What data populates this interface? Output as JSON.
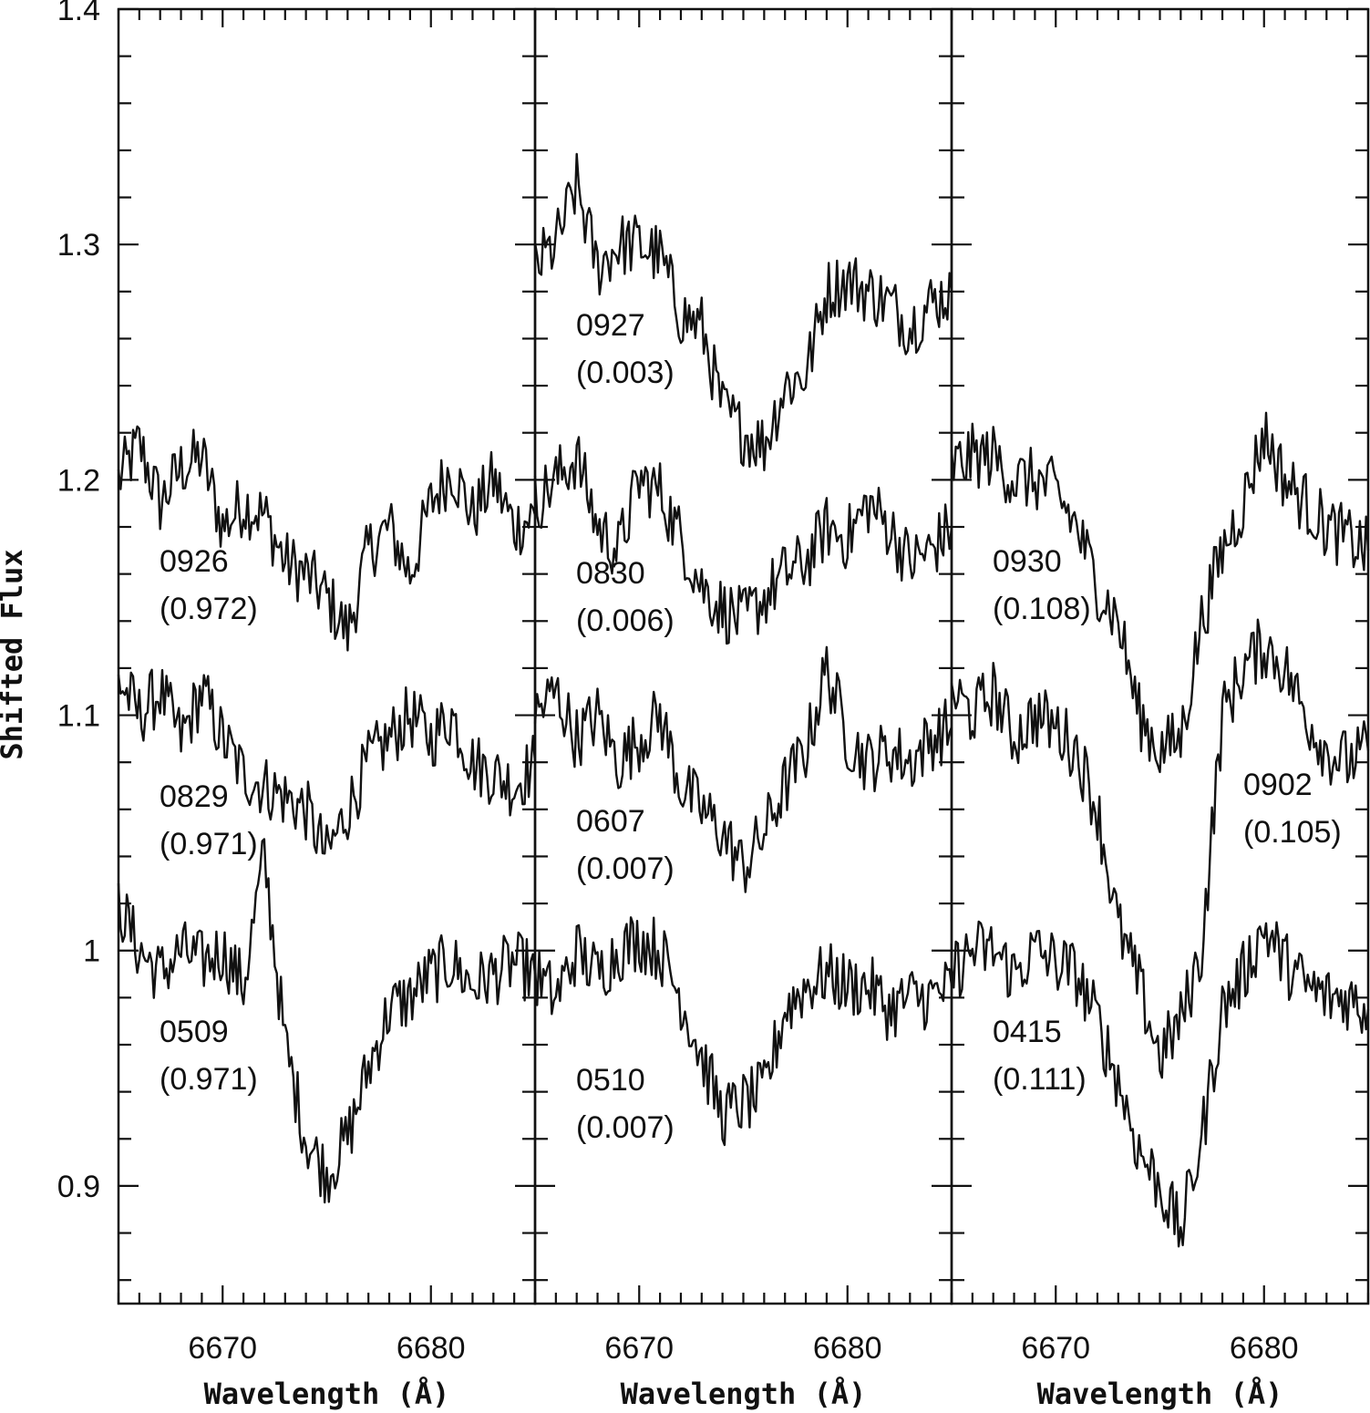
{
  "chart_data": {
    "type": "line",
    "ylabel": "Shifted Flux",
    "xlabel": "Wavelength (Å)",
    "xlim": [
      6665,
      6685
    ],
    "ylim": [
      0.85,
      1.4
    ],
    "x_ticks": [
      "6670",
      "6680"
    ],
    "y_ticks": [
      "0.9",
      "1",
      "1.1",
      "1.2",
      "1.3",
      "1.4"
    ],
    "panels": [
      {
        "panel": "left",
        "series": [
          {
            "id": "0926",
            "phase": "(0.972)",
            "level": 1.2,
            "points": [
              [
                6665,
                1.2
              ],
              [
                6666,
                1.215
              ],
              [
                6667,
                1.19
              ],
              [
                6668,
                1.205
              ],
              [
                6669,
                1.21
              ],
              [
                6670,
                1.18
              ],
              [
                6671,
                1.19
              ],
              [
                6672,
                1.185
              ],
              [
                6673,
                1.165
              ],
              [
                6674,
                1.16
              ],
              [
                6675,
                1.15
              ],
              [
                6676,
                1.135
              ],
              [
                6677,
                1.17
              ],
              [
                6678,
                1.18
              ],
              [
                6679,
                1.16
              ],
              [
                6680,
                1.19
              ],
              [
                6681,
                1.205
              ],
              [
                6682,
                1.185
              ],
              [
                6683,
                1.2
              ],
              [
                6684,
                1.18
              ],
              [
                6685,
                1.185
              ]
            ]
          },
          {
            "id": "0829",
            "phase": "(0.971)",
            "level": 1.1,
            "points": [
              [
                6665,
                1.115
              ],
              [
                6666,
                1.1
              ],
              [
                6667,
                1.11
              ],
              [
                6668,
                1.09
              ],
              [
                6669,
                1.11
              ],
              [
                6670,
                1.09
              ],
              [
                6671,
                1.075
              ],
              [
                6672,
                1.07
              ],
              [
                6673,
                1.065
              ],
              [
                6674,
                1.06
              ],
              [
                6675,
                1.04
              ],
              [
                6676,
                1.06
              ],
              [
                6677,
                1.08
              ],
              [
                6678,
                1.09
              ],
              [
                6679,
                1.1
              ],
              [
                6680,
                1.09
              ],
              [
                6681,
                1.1
              ],
              [
                6682,
                1.08
              ],
              [
                6683,
                1.075
              ],
              [
                6684,
                1.07
              ],
              [
                6685,
                1.08
              ]
            ]
          },
          {
            "id": "0509",
            "phase": "(0.971)",
            "level": 1.0,
            "points": [
              [
                6665,
                1.02
              ],
              [
                6666,
                1.0
              ],
              [
                6667,
                0.99
              ],
              [
                6668,
                1.0
              ],
              [
                6669,
                0.995
              ],
              [
                6670,
                1.0
              ],
              [
                6671,
                0.985
              ],
              [
                6672,
                1.04
              ],
              [
                6673,
                0.96
              ],
              [
                6674,
                0.92
              ],
              [
                6675,
                0.905
              ],
              [
                6676,
                0.92
              ],
              [
                6677,
                0.95
              ],
              [
                6678,
                0.975
              ],
              [
                6679,
                0.98
              ],
              [
                6680,
                0.99
              ],
              [
                6681,
                0.995
              ],
              [
                6682,
                0.985
              ],
              [
                6683,
                0.99
              ],
              [
                6684,
                0.995
              ],
              [
                6685,
                0.99
              ]
            ]
          }
        ]
      },
      {
        "panel": "middle",
        "series": [
          {
            "id": "0927",
            "phase": "(0.003)",
            "level": 1.3,
            "points": [
              [
                6665,
                1.29
              ],
              [
                6666,
                1.3
              ],
              [
                6667,
                1.325
              ],
              [
                6668,
                1.29
              ],
              [
                6669,
                1.3
              ],
              [
                6670,
                1.3
              ],
              [
                6671,
                1.295
              ],
              [
                6672,
                1.27
              ],
              [
                6673,
                1.265
              ],
              [
                6674,
                1.23
              ],
              [
                6675,
                1.22
              ],
              [
                6676,
                1.215
              ],
              [
                6677,
                1.24
              ],
              [
                6678,
                1.245
              ],
              [
                6679,
                1.28
              ],
              [
                6680,
                1.285
              ],
              [
                6681,
                1.28
              ],
              [
                6682,
                1.275
              ],
              [
                6683,
                1.265
              ],
              [
                6684,
                1.275
              ],
              [
                6685,
                1.28
              ]
            ]
          },
          {
            "id": "0830",
            "phase": "(0.006)",
            "level": 1.2,
            "points": [
              [
                6665,
                1.19
              ],
              [
                6666,
                1.2
              ],
              [
                6667,
                1.21
              ],
              [
                6668,
                1.18
              ],
              [
                6669,
                1.17
              ],
              [
                6670,
                1.2
              ],
              [
                6671,
                1.195
              ],
              [
                6672,
                1.175
              ],
              [
                6673,
                1.155
              ],
              [
                6674,
                1.145
              ],
              [
                6675,
                1.14
              ],
              [
                6676,
                1.15
              ],
              [
                6677,
                1.16
              ],
              [
                6678,
                1.165
              ],
              [
                6679,
                1.18
              ],
              [
                6680,
                1.175
              ],
              [
                6681,
                1.19
              ],
              [
                6682,
                1.18
              ],
              [
                6683,
                1.165
              ],
              [
                6684,
                1.17
              ],
              [
                6685,
                1.18
              ]
            ]
          },
          {
            "id": "0607",
            "phase": "(0.007)",
            "level": 1.1,
            "points": [
              [
                6665,
                1.1
              ],
              [
                6666,
                1.11
              ],
              [
                6667,
                1.09
              ],
              [
                6668,
                1.1
              ],
              [
                6669,
                1.08
              ],
              [
                6670,
                1.09
              ],
              [
                6671,
                1.1
              ],
              [
                6672,
                1.07
              ],
              [
                6673,
                1.06
              ],
              [
                6674,
                1.05
              ],
              [
                6675,
                1.035
              ],
              [
                6676,
                1.05
              ],
              [
                6677,
                1.07
              ],
              [
                6678,
                1.085
              ],
              [
                6679,
                1.12
              ],
              [
                6680,
                1.09
              ],
              [
                6681,
                1.08
              ],
              [
                6682,
                1.085
              ],
              [
                6683,
                1.08
              ],
              [
                6684,
                1.09
              ],
              [
                6685,
                1.095
              ]
            ]
          },
          {
            "id": "0510",
            "phase": "(0.007)",
            "level": 1.0,
            "points": [
              [
                6665,
                0.99
              ],
              [
                6666,
                0.98
              ],
              [
                6667,
                1.0
              ],
              [
                6668,
                0.99
              ],
              [
                6669,
                1.0
              ],
              [
                6670,
                1.005
              ],
              [
                6671,
                1.0
              ],
              [
                6672,
                0.98
              ],
              [
                6673,
                0.955
              ],
              [
                6674,
                0.93
              ],
              [
                6675,
                0.935
              ],
              [
                6676,
                0.94
              ],
              [
                6677,
                0.975
              ],
              [
                6678,
                0.985
              ],
              [
                6679,
                0.99
              ],
              [
                6680,
                0.985
              ],
              [
                6681,
                0.985
              ],
              [
                6682,
                0.975
              ],
              [
                6683,
                0.98
              ],
              [
                6684,
                0.98
              ],
              [
                6685,
                0.985
              ]
            ]
          }
        ]
      },
      {
        "panel": "right",
        "series": [
          {
            "id": "0930",
            "phase": "(0.108)",
            "level": 1.2,
            "points": [
              [
                6665,
                1.205
              ],
              [
                6666,
                1.21
              ],
              [
                6667,
                1.21
              ],
              [
                6668,
                1.2
              ],
              [
                6669,
                1.2
              ],
              [
                6670,
                1.195
              ],
              [
                6671,
                1.18
              ],
              [
                6672,
                1.155
              ],
              [
                6673,
                1.14
              ],
              [
                6674,
                1.1
              ],
              [
                6675,
                1.085
              ],
              [
                6676,
                1.09
              ],
              [
                6677,
                1.14
              ],
              [
                6678,
                1.17
              ],
              [
                6679,
                1.19
              ],
              [
                6680,
                1.22
              ],
              [
                6681,
                1.2
              ],
              [
                6682,
                1.19
              ],
              [
                6683,
                1.18
              ],
              [
                6684,
                1.175
              ],
              [
                6685,
                1.17
              ]
            ]
          },
          {
            "id": "0902",
            "phase": "(0.105)",
            "level": 1.1,
            "points": [
              [
                6665,
                1.11
              ],
              [
                6666,
                1.1
              ],
              [
                6667,
                1.11
              ],
              [
                6668,
                1.09
              ],
              [
                6669,
                1.1
              ],
              [
                6670,
                1.095
              ],
              [
                6671,
                1.085
              ],
              [
                6672,
                1.06
              ],
              [
                6673,
                1.01
              ],
              [
                6674,
                0.985
              ],
              [
                6675,
                0.955
              ],
              [
                6676,
                0.97
              ],
              [
                6677,
                1.0
              ],
              [
                6678,
                1.1
              ],
              [
                6679,
                1.12
              ],
              [
                6680,
                1.13
              ],
              [
                6681,
                1.12
              ],
              [
                6682,
                1.1
              ],
              [
                6683,
                1.085
              ],
              [
                6684,
                1.08
              ],
              [
                6685,
                1.085
              ]
            ]
          },
          {
            "id": "0415",
            "phase": "(0.111)",
            "level": 1.0,
            "points": [
              [
                6665,
                0.99
              ],
              [
                6666,
                1.0
              ],
              [
                6667,
                1.0
              ],
              [
                6668,
                0.99
              ],
              [
                6669,
                1.0
              ],
              [
                6670,
                0.995
              ],
              [
                6671,
                0.99
              ],
              [
                6672,
                0.97
              ],
              [
                6673,
                0.945
              ],
              [
                6674,
                0.915
              ],
              [
                6675,
                0.9
              ],
              [
                6676,
                0.88
              ],
              [
                6677,
                0.92
              ],
              [
                6678,
                0.975
              ],
              [
                6679,
                0.99
              ],
              [
                6680,
                1.01
              ],
              [
                6681,
                0.995
              ],
              [
                6682,
                0.985
              ],
              [
                6683,
                0.98
              ],
              [
                6684,
                0.98
              ],
              [
                6685,
                0.975
              ]
            ]
          }
        ]
      }
    ]
  }
}
